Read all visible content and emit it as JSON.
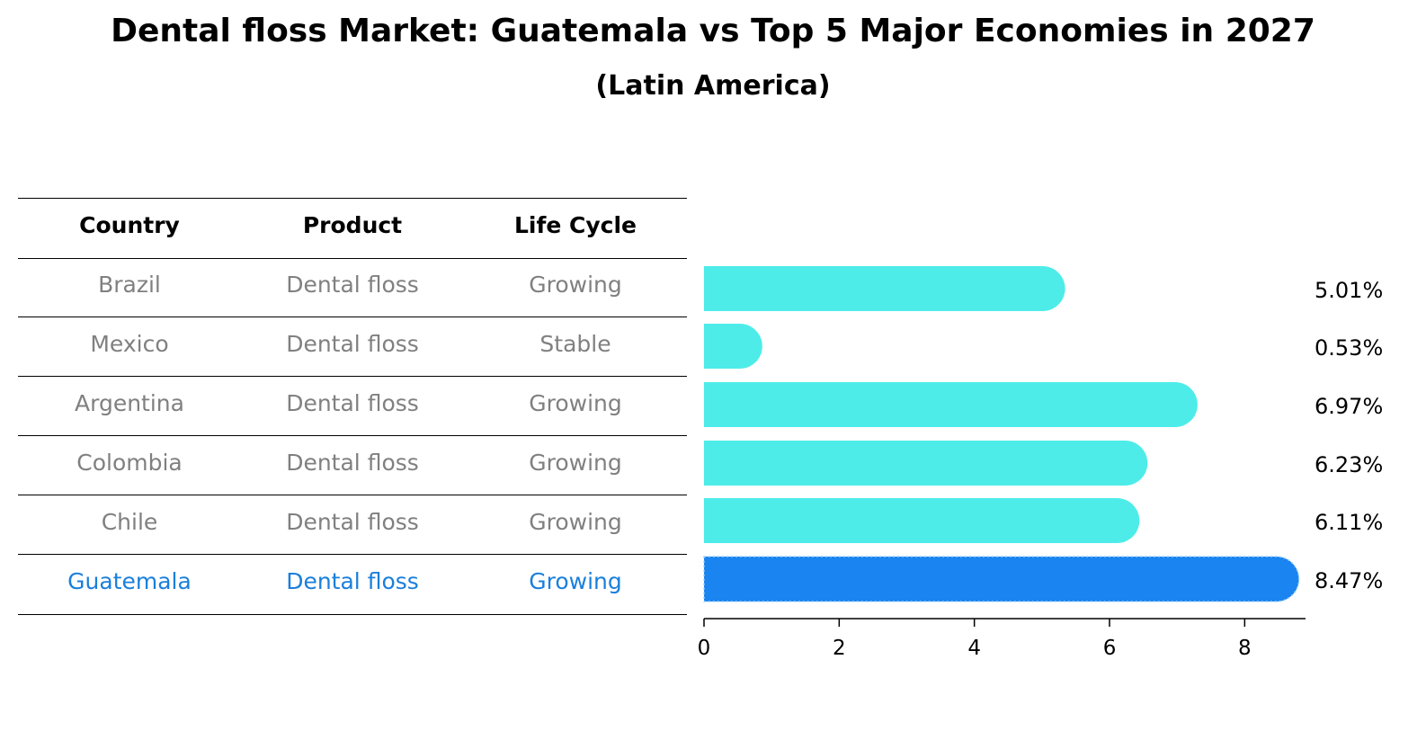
{
  "title": "Dental floss Market: Guatemala vs Top 5 Major Economies in 2027",
  "subtitle": "(Latin America)",
  "colors": {
    "bar": "#4dece9",
    "highlight": "#1a84f0",
    "highlight_text": "#1a7fdc",
    "dim_text": "#808080"
  },
  "table": {
    "headers": [
      "Country",
      "Product",
      "Life Cycle"
    ],
    "rows": [
      {
        "country": "Brazil",
        "product": "Dental floss",
        "life_cycle": "Growing",
        "highlight": false
      },
      {
        "country": "Mexico",
        "product": "Dental floss",
        "life_cycle": "Stable",
        "highlight": false
      },
      {
        "country": "Argentina",
        "product": "Dental floss",
        "life_cycle": "Growing",
        "highlight": false
      },
      {
        "country": "Colombia",
        "product": "Dental floss",
        "life_cycle": "Growing",
        "highlight": false
      },
      {
        "country": "Chile",
        "product": "Dental floss",
        "life_cycle": "Growing",
        "highlight": false
      },
      {
        "country": "Guatemala",
        "product": "Dental floss",
        "life_cycle": "Growing",
        "highlight": true
      }
    ]
  },
  "chart_data": {
    "type": "bar",
    "orientation": "horizontal",
    "categories": [
      "Brazil",
      "Mexico",
      "Argentina",
      "Colombia",
      "Chile",
      "Guatemala"
    ],
    "values": [
      5.01,
      0.53,
      6.97,
      6.23,
      6.11,
      8.47
    ],
    "value_labels": [
      "5.01%",
      "0.53%",
      "6.97%",
      "6.23%",
      "6.11%",
      "8.47%"
    ],
    "highlight": "Guatemala",
    "xlim": [
      0,
      8.9
    ],
    "xticks": [
      0,
      2,
      4,
      6,
      8
    ],
    "xlabel": "",
    "ylabel": "",
    "grid": false
  }
}
